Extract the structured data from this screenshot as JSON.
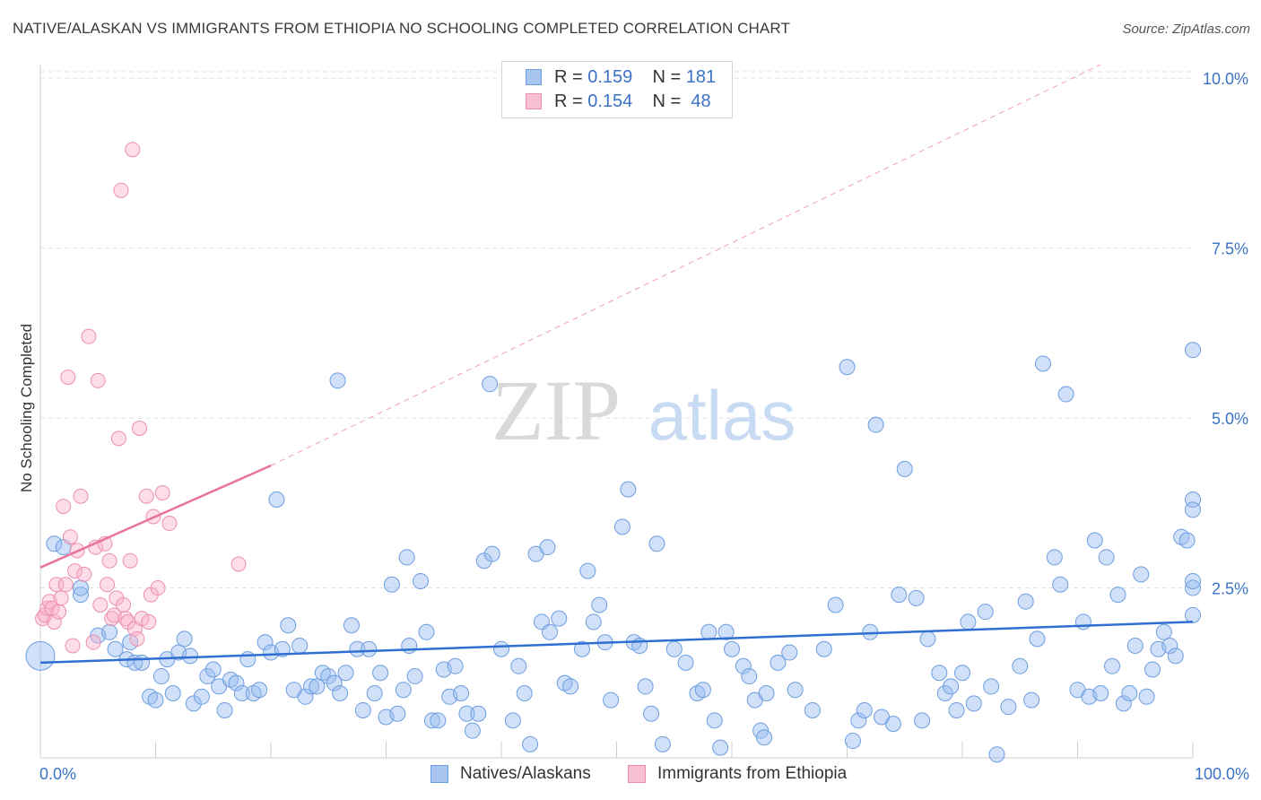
{
  "title": "NATIVE/ALASKAN VS IMMIGRANTS FROM ETHIOPIA NO SCHOOLING COMPLETED CORRELATION CHART",
  "source": "Source: ZipAtlas.com",
  "watermark": {
    "zip": "ZIP",
    "atlas": "atlas"
  },
  "legend": {
    "rows": [
      {
        "r_label": "R =",
        "r_value": "0.159",
        "n_label": "N =",
        "n_value": "181",
        "color": "#a9c6f0",
        "border": "#6d9ee0"
      },
      {
        "r_label": "R =",
        "r_value": "0.154",
        "n_label": "N =",
        "n_value": "48",
        "color": "#f8c0d2",
        "border": "#ec8fae"
      }
    ]
  },
  "colors": {
    "native_fill": "rgba(150,186,240,0.45)",
    "native_stroke": "#6d9ee0",
    "native_line": "#2f6fd1",
    "eth_fill": "rgba(248,180,204,0.45)",
    "eth_stroke": "#ec8fae",
    "eth_line": "#e8749a",
    "grid": "#e2e2e2",
    "axis_text": "#3b72c6"
  },
  "chart_data": {
    "type": "scatter",
    "title": "NATIVE/ALASKAN VS IMMIGRANTS FROM ETHIOPIA NO SCHOOLING COMPLETED CORRELATION CHART",
    "xlabel": "",
    "ylabel": "No Schooling Completed",
    "xlim": [
      0,
      100
    ],
    "ylim": [
      0,
      10.2
    ],
    "x_tick_labels": [
      "0.0%",
      "100.0%"
    ],
    "y_ticks": [
      2.5,
      5.0,
      7.5,
      10.0
    ],
    "y_tick_labels": [
      "2.5%",
      "5.0%",
      "7.5%",
      "10.0%"
    ],
    "grid": true,
    "legend_position": "top-center",
    "series": [
      {
        "name": "Natives/Alaskans",
        "r": 0.159,
        "n": 181,
        "trend": {
          "x": [
            0,
            100
          ],
          "y": [
            1.4,
            2.0
          ]
        },
        "points": [
          [
            0,
            1.5
          ],
          [
            1.2,
            3.15
          ],
          [
            2,
            3.1
          ],
          [
            3.5,
            2.4
          ],
          [
            3.5,
            2.5
          ],
          [
            5,
            1.8
          ],
          [
            6,
            1.85
          ],
          [
            6.5,
            1.6
          ],
          [
            7.5,
            1.45
          ],
          [
            7.8,
            1.7
          ],
          [
            8.2,
            1.4
          ],
          [
            8.8,
            1.4
          ],
          [
            9.5,
            0.9
          ],
          [
            10,
            0.85
          ],
          [
            10.5,
            1.2
          ],
          [
            11,
            1.45
          ],
          [
            11.5,
            0.95
          ],
          [
            12,
            1.55
          ],
          [
            12.5,
            1.75
          ],
          [
            13,
            1.5
          ],
          [
            13.3,
            0.8
          ],
          [
            14,
            0.9
          ],
          [
            14.5,
            1.2
          ],
          [
            15,
            1.3
          ],
          [
            15.5,
            1.05
          ],
          [
            16,
            0.7
          ],
          [
            16.5,
            1.15
          ],
          [
            17,
            1.1
          ],
          [
            17.5,
            0.95
          ],
          [
            18,
            1.45
          ],
          [
            18.5,
            0.95
          ],
          [
            19,
            1.0
          ],
          [
            19.5,
            1.7
          ],
          [
            20,
            1.55
          ],
          [
            20.5,
            3.8
          ],
          [
            21,
            1.6
          ],
          [
            21.5,
            1.95
          ],
          [
            22,
            1.0
          ],
          [
            22.5,
            1.65
          ],
          [
            23,
            0.9
          ],
          [
            23.5,
            1.05
          ],
          [
            24,
            1.05
          ],
          [
            24.5,
            1.25
          ],
          [
            25,
            1.2
          ],
          [
            25.5,
            1.1
          ],
          [
            25.8,
            5.55
          ],
          [
            26,
            0.95
          ],
          [
            26.5,
            1.25
          ],
          [
            27,
            1.95
          ],
          [
            27.5,
            1.6
          ],
          [
            28,
            0.7
          ],
          [
            28.5,
            1.6
          ],
          [
            29,
            0.95
          ],
          [
            29.5,
            1.25
          ],
          [
            30,
            0.6
          ],
          [
            30.5,
            2.55
          ],
          [
            31,
            0.65
          ],
          [
            31.5,
            1.0
          ],
          [
            31.8,
            2.95
          ],
          [
            32,
            1.65
          ],
          [
            32.5,
            1.2
          ],
          [
            33,
            2.6
          ],
          [
            33.5,
            1.85
          ],
          [
            34,
            0.55
          ],
          [
            34.5,
            0.55
          ],
          [
            35,
            1.3
          ],
          [
            35.5,
            0.9
          ],
          [
            36,
            1.35
          ],
          [
            36.5,
            0.95
          ],
          [
            37,
            0.65
          ],
          [
            37.5,
            0.4
          ],
          [
            38,
            0.65
          ],
          [
            38.5,
            2.9
          ],
          [
            39,
            5.5
          ],
          [
            39.2,
            3.0
          ],
          [
            40,
            1.6
          ],
          [
            41,
            0.55
          ],
          [
            41.5,
            1.35
          ],
          [
            42,
            0.95
          ],
          [
            42.5,
            0.2
          ],
          [
            43,
            3.0
          ],
          [
            43.5,
            2.0
          ],
          [
            44,
            3.1
          ],
          [
            44.2,
            1.85
          ],
          [
            45,
            2.05
          ],
          [
            45.5,
            1.1
          ],
          [
            46,
            1.05
          ],
          [
            47,
            1.6
          ],
          [
            47.5,
            2.75
          ],
          [
            48,
            2.0
          ],
          [
            48.5,
            2.25
          ],
          [
            49,
            1.7
          ],
          [
            49.5,
            0.85
          ],
          [
            50.5,
            3.4
          ],
          [
            51,
            3.95
          ],
          [
            51.5,
            1.7
          ],
          [
            52,
            1.65
          ],
          [
            52.5,
            1.05
          ],
          [
            53,
            0.65
          ],
          [
            53.5,
            3.15
          ],
          [
            54,
            0.2
          ],
          [
            55,
            1.6
          ],
          [
            56,
            1.4
          ],
          [
            57,
            0.95
          ],
          [
            57.5,
            1.0
          ],
          [
            58,
            1.85
          ],
          [
            58.5,
            0.55
          ],
          [
            59,
            0.15
          ],
          [
            59.5,
            1.85
          ],
          [
            60,
            1.6
          ],
          [
            61,
            1.35
          ],
          [
            61.5,
            1.2
          ],
          [
            62,
            0.85
          ],
          [
            62.5,
            0.4
          ],
          [
            62.8,
            0.3
          ],
          [
            63,
            0.95
          ],
          [
            64,
            1.4
          ],
          [
            65,
            1.55
          ],
          [
            65.5,
            1.0
          ],
          [
            67,
            0.7
          ],
          [
            68,
            1.6
          ],
          [
            69,
            2.25
          ],
          [
            70,
            5.75
          ],
          [
            70.5,
            0.25
          ],
          [
            71,
            0.55
          ],
          [
            71.5,
            0.7
          ],
          [
            72,
            1.85
          ],
          [
            73,
            0.6
          ],
          [
            74,
            0.5
          ],
          [
            75,
            4.25
          ],
          [
            76,
            2.35
          ],
          [
            76.5,
            0.55
          ],
          [
            77,
            1.75
          ],
          [
            78,
            1.25
          ],
          [
            78.5,
            0.95
          ],
          [
            79,
            1.05
          ],
          [
            79.5,
            0.7
          ],
          [
            80,
            1.25
          ],
          [
            81,
            0.8
          ],
          [
            82,
            2.15
          ],
          [
            82.5,
            1.05
          ],
          [
            83,
            0.05
          ],
          [
            84,
            0.75
          ],
          [
            85,
            1.35
          ],
          [
            85.5,
            2.3
          ],
          [
            86,
            0.85
          ],
          [
            86.5,
            1.75
          ],
          [
            87,
            5.8
          ],
          [
            88,
            2.95
          ],
          [
            88.5,
            2.55
          ],
          [
            89,
            5.35
          ],
          [
            90,
            1.0
          ],
          [
            90.5,
            2.0
          ],
          [
            91,
            0.9
          ],
          [
            91.5,
            3.2
          ],
          [
            92,
            0.95
          ],
          [
            92.5,
            2.95
          ],
          [
            93,
            1.35
          ],
          [
            93.5,
            2.4
          ],
          [
            94,
            0.8
          ],
          [
            94.5,
            0.95
          ],
          [
            95,
            1.65
          ],
          [
            95.5,
            2.7
          ],
          [
            96,
            0.9
          ],
          [
            96.5,
            1.3
          ],
          [
            97,
            1.6
          ],
          [
            97.5,
            1.85
          ],
          [
            98,
            1.65
          ],
          [
            98.5,
            1.5
          ],
          [
            99,
            3.25
          ],
          [
            99.5,
            3.2
          ],
          [
            100,
            2.5
          ],
          [
            100.5,
            2.6
          ],
          [
            101,
            2.1
          ],
          [
            101.5,
            3.8
          ],
          [
            102,
            3.65
          ],
          [
            102.5,
            6.0
          ],
          [
            80.5,
            2.0
          ],
          [
            74.5,
            2.4
          ],
          [
            72.5,
            4.9
          ]
        ]
      },
      {
        "name": "Immigrants from Ethiopia",
        "r": 0.154,
        "n": 48,
        "trend": {
          "x": [
            0,
            20
          ],
          "y": [
            2.8,
            4.3
          ]
        },
        "trend_extended": {
          "x": [
            20,
            92
          ],
          "y": [
            4.3,
            10.2
          ]
        },
        "points": [
          [
            0.2,
            2.05
          ],
          [
            0.4,
            2.1
          ],
          [
            0.6,
            2.2
          ],
          [
            0.8,
            2.3
          ],
          [
            1,
            2.2
          ],
          [
            1.2,
            2.0
          ],
          [
            1.4,
            2.55
          ],
          [
            1.6,
            2.15
          ],
          [
            1.8,
            2.35
          ],
          [
            2,
            3.7
          ],
          [
            2.2,
            2.55
          ],
          [
            2.4,
            5.6
          ],
          [
            2.6,
            3.25
          ],
          [
            2.8,
            1.65
          ],
          [
            3,
            2.75
          ],
          [
            3.2,
            3.05
          ],
          [
            3.5,
            3.85
          ],
          [
            3.8,
            2.7
          ],
          [
            4.2,
            6.2
          ],
          [
            4.6,
            1.7
          ],
          [
            4.8,
            3.1
          ],
          [
            5.0,
            5.55
          ],
          [
            5.2,
            2.25
          ],
          [
            5.6,
            3.15
          ],
          [
            5.8,
            2.55
          ],
          [
            6,
            2.9
          ],
          [
            6.2,
            2.05
          ],
          [
            6.4,
            2.1
          ],
          [
            6.6,
            2.35
          ],
          [
            6.8,
            4.7
          ],
          [
            7,
            8.35
          ],
          [
            7.2,
            2.25
          ],
          [
            7.4,
            2.05
          ],
          [
            7.6,
            2.0
          ],
          [
            7.8,
            2.9
          ],
          [
            8,
            8.95
          ],
          [
            8.2,
            1.9
          ],
          [
            8.4,
            1.75
          ],
          [
            8.6,
            4.85
          ],
          [
            8.8,
            2.05
          ],
          [
            9.2,
            3.85
          ],
          [
            9.4,
            2.0
          ],
          [
            9.6,
            2.4
          ],
          [
            9.8,
            3.55
          ],
          [
            10.2,
            2.5
          ],
          [
            10.6,
            3.9
          ],
          [
            11.2,
            3.45
          ],
          [
            17.2,
            2.85
          ]
        ]
      }
    ]
  }
}
